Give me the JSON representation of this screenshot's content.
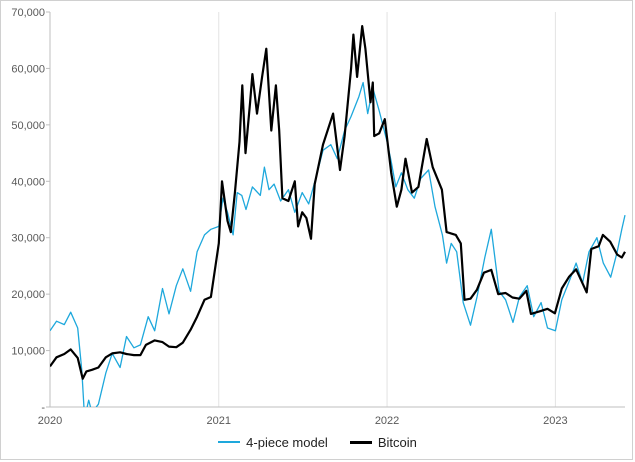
{
  "chart_data": {
    "type": "line",
    "title": "",
    "xlabel": "",
    "ylabel": "",
    "x_ticks": [
      "2020",
      "2021",
      "2022",
      "2023"
    ],
    "x_range": [
      "2020-01-01",
      "2023-06-01"
    ],
    "y_ticks": [
      "-",
      "10,000",
      "20,000",
      "30,000",
      "40,000",
      "50,000",
      "60,000",
      "70,000"
    ],
    "ylim": [
      0,
      70000
    ],
    "grid": "vertical",
    "legend_position": "bottom",
    "series": [
      {
        "name": "4-piece model",
        "color": "#1ea8dc",
        "points": [
          [
            "2020-01-01",
            13500
          ],
          [
            "2020-01-15",
            15200
          ],
          [
            "2020-02-01",
            14600
          ],
          [
            "2020-02-15",
            16800
          ],
          [
            "2020-03-01",
            14000
          ],
          [
            "2020-03-10",
            6500
          ],
          [
            "2020-03-16",
            -2000
          ],
          [
            "2020-03-25",
            1200
          ],
          [
            "2020-04-01",
            -1000
          ],
          [
            "2020-04-15",
            500
          ],
          [
            "2020-05-01",
            6000
          ],
          [
            "2020-05-15",
            9500
          ],
          [
            "2020-06-01",
            7000
          ],
          [
            "2020-06-15",
            12500
          ],
          [
            "2020-07-01",
            10500
          ],
          [
            "2020-07-15",
            11000
          ],
          [
            "2020-08-01",
            16000
          ],
          [
            "2020-08-15",
            13500
          ],
          [
            "2020-09-01",
            21000
          ],
          [
            "2020-09-15",
            16500
          ],
          [
            "2020-10-01",
            21500
          ],
          [
            "2020-10-15",
            24500
          ],
          [
            "2020-11-01",
            20500
          ],
          [
            "2020-11-15",
            27500
          ],
          [
            "2020-12-01",
            30500
          ],
          [
            "2020-12-15",
            31500
          ],
          [
            "2021-01-01",
            32000
          ],
          [
            "2021-01-10",
            37000
          ],
          [
            "2021-01-20",
            34500
          ],
          [
            "2021-02-01",
            30500
          ],
          [
            "2021-02-10",
            38000
          ],
          [
            "2021-02-20",
            37500
          ],
          [
            "2021-03-01",
            35000
          ],
          [
            "2021-03-15",
            39000
          ],
          [
            "2021-04-01",
            37500
          ],
          [
            "2021-04-10",
            42500
          ],
          [
            "2021-04-20",
            38500
          ],
          [
            "2021-05-01",
            39500
          ],
          [
            "2021-05-15",
            36500
          ],
          [
            "2021-06-01",
            38500
          ],
          [
            "2021-06-15",
            34500
          ],
          [
            "2021-07-01",
            38000
          ],
          [
            "2021-07-15",
            36000
          ],
          [
            "2021-08-01",
            41000
          ],
          [
            "2021-08-15",
            45500
          ],
          [
            "2021-09-01",
            46500
          ],
          [
            "2021-09-15",
            44000
          ],
          [
            "2021-10-01",
            49000
          ],
          [
            "2021-10-15",
            51500
          ],
          [
            "2021-11-01",
            55000
          ],
          [
            "2021-11-10",
            57500
          ],
          [
            "2021-11-20",
            52000
          ],
          [
            "2021-12-01",
            56500
          ],
          [
            "2021-12-15",
            52500
          ],
          [
            "2022-01-01",
            47000
          ],
          [
            "2022-01-10",
            43500
          ],
          [
            "2022-01-20",
            39000
          ],
          [
            "2022-02-01",
            41500
          ],
          [
            "2022-02-15",
            38500
          ],
          [
            "2022-03-01",
            37000
          ],
          [
            "2022-03-15",
            40500
          ],
          [
            "2022-04-01",
            42000
          ],
          [
            "2022-04-15",
            35500
          ],
          [
            "2022-05-01",
            30500
          ],
          [
            "2022-05-10",
            25500
          ],
          [
            "2022-05-20",
            29000
          ],
          [
            "2022-06-01",
            27500
          ],
          [
            "2022-06-15",
            18500
          ],
          [
            "2022-07-01",
            14500
          ],
          [
            "2022-07-15",
            19500
          ],
          [
            "2022-08-01",
            26500
          ],
          [
            "2022-08-15",
            31500
          ],
          [
            "2022-09-01",
            20500
          ],
          [
            "2022-09-15",
            19000
          ],
          [
            "2022-10-01",
            15000
          ],
          [
            "2022-10-15",
            19500
          ],
          [
            "2022-11-01",
            21500
          ],
          [
            "2022-11-15",
            16000
          ],
          [
            "2022-12-01",
            18500
          ],
          [
            "2022-12-15",
            14000
          ],
          [
            "2023-01-01",
            13500
          ],
          [
            "2023-01-15",
            19000
          ],
          [
            "2023-02-01",
            22500
          ],
          [
            "2023-02-15",
            25500
          ],
          [
            "2023-03-01",
            22000
          ],
          [
            "2023-03-15",
            27500
          ],
          [
            "2023-04-01",
            30000
          ],
          [
            "2023-04-15",
            25500
          ],
          [
            "2023-05-01",
            23000
          ],
          [
            "2023-05-15",
            27500
          ],
          [
            "2023-05-25",
            31500
          ],
          [
            "2023-06-01",
            34000
          ]
        ]
      },
      {
        "name": "Bitcoin",
        "color": "#000000",
        "points": [
          [
            "2020-01-01",
            7200
          ],
          [
            "2020-01-15",
            8800
          ],
          [
            "2020-02-01",
            9400
          ],
          [
            "2020-02-15",
            10200
          ],
          [
            "2020-03-01",
            8700
          ],
          [
            "2020-03-12",
            5000
          ],
          [
            "2020-03-20",
            6300
          ],
          [
            "2020-04-01",
            6600
          ],
          [
            "2020-04-15",
            7000
          ],
          [
            "2020-05-01",
            8800
          ],
          [
            "2020-05-15",
            9500
          ],
          [
            "2020-06-01",
            9700
          ],
          [
            "2020-06-15",
            9400
          ],
          [
            "2020-07-01",
            9200
          ],
          [
            "2020-07-15",
            9200
          ],
          [
            "2020-07-27",
            11000
          ],
          [
            "2020-08-15",
            11800
          ],
          [
            "2020-09-01",
            11500
          ],
          [
            "2020-09-15",
            10700
          ],
          [
            "2020-10-01",
            10600
          ],
          [
            "2020-10-15",
            11400
          ],
          [
            "2020-11-01",
            13700
          ],
          [
            "2020-11-15",
            16000
          ],
          [
            "2020-12-01",
            19000
          ],
          [
            "2020-12-15",
            19500
          ],
          [
            "2021-01-01",
            29000
          ],
          [
            "2021-01-08",
            40000
          ],
          [
            "2021-01-20",
            33000
          ],
          [
            "2021-01-27",
            31000
          ],
          [
            "2021-02-05",
            38000
          ],
          [
            "2021-02-15",
            47000
          ],
          [
            "2021-02-21",
            57000
          ],
          [
            "2021-02-28",
            45000
          ],
          [
            "2021-03-10",
            54000
          ],
          [
            "2021-03-15",
            59000
          ],
          [
            "2021-03-25",
            52000
          ],
          [
            "2021-04-05",
            58500
          ],
          [
            "2021-04-14",
            63500
          ],
          [
            "2021-04-25",
            49000
          ],
          [
            "2021-05-05",
            57000
          ],
          [
            "2021-05-12",
            49000
          ],
          [
            "2021-05-19",
            37000
          ],
          [
            "2021-06-01",
            36500
          ],
          [
            "2021-06-15",
            40000
          ],
          [
            "2021-06-22",
            32000
          ],
          [
            "2021-07-01",
            34500
          ],
          [
            "2021-07-10",
            33500
          ],
          [
            "2021-07-20",
            29800
          ],
          [
            "2021-07-28",
            39500
          ],
          [
            "2021-08-15",
            46500
          ],
          [
            "2021-09-06",
            52000
          ],
          [
            "2021-09-21",
            42000
          ],
          [
            "2021-10-01",
            48000
          ],
          [
            "2021-10-15",
            60000
          ],
          [
            "2021-10-20",
            66000
          ],
          [
            "2021-10-28",
            58500
          ],
          [
            "2021-11-08",
            67500
          ],
          [
            "2021-11-15",
            63500
          ],
          [
            "2021-11-26",
            54000
          ],
          [
            "2021-12-01",
            57500
          ],
          [
            "2021-12-04",
            48000
          ],
          [
            "2021-12-15",
            48500
          ],
          [
            "2021-12-27",
            51000
          ],
          [
            "2022-01-10",
            41500
          ],
          [
            "2022-01-22",
            35500
          ],
          [
            "2022-02-01",
            38500
          ],
          [
            "2022-02-10",
            44000
          ],
          [
            "2022-02-24",
            38000
          ],
          [
            "2022-03-10",
            39000
          ],
          [
            "2022-03-28",
            47500
          ],
          [
            "2022-04-10",
            42500
          ],
          [
            "2022-04-30",
            38500
          ],
          [
            "2022-05-10",
            31000
          ],
          [
            "2022-05-30",
            30500
          ],
          [
            "2022-06-10",
            29000
          ],
          [
            "2022-06-18",
            19000
          ],
          [
            "2022-07-01",
            19200
          ],
          [
            "2022-07-15",
            20800
          ],
          [
            "2022-07-30",
            23800
          ],
          [
            "2022-08-15",
            24300
          ],
          [
            "2022-08-30",
            20000
          ],
          [
            "2022-09-15",
            20200
          ],
          [
            "2022-09-30",
            19400
          ],
          [
            "2022-10-15",
            19200
          ],
          [
            "2022-10-30",
            20600
          ],
          [
            "2022-11-09",
            16500
          ],
          [
            "2022-11-30",
            17000
          ],
          [
            "2022-12-15",
            17400
          ],
          [
            "2022-12-31",
            16600
          ],
          [
            "2023-01-15",
            21000
          ],
          [
            "2023-01-31",
            23100
          ],
          [
            "2023-02-15",
            24400
          ],
          [
            "2023-03-10",
            20300
          ],
          [
            "2023-03-20",
            28000
          ],
          [
            "2023-04-05",
            28500
          ],
          [
            "2023-04-14",
            30500
          ],
          [
            "2023-04-30",
            29300
          ],
          [
            "2023-05-15",
            27000
          ],
          [
            "2023-05-25",
            26500
          ],
          [
            "2023-06-01",
            27500
          ]
        ]
      }
    ]
  }
}
